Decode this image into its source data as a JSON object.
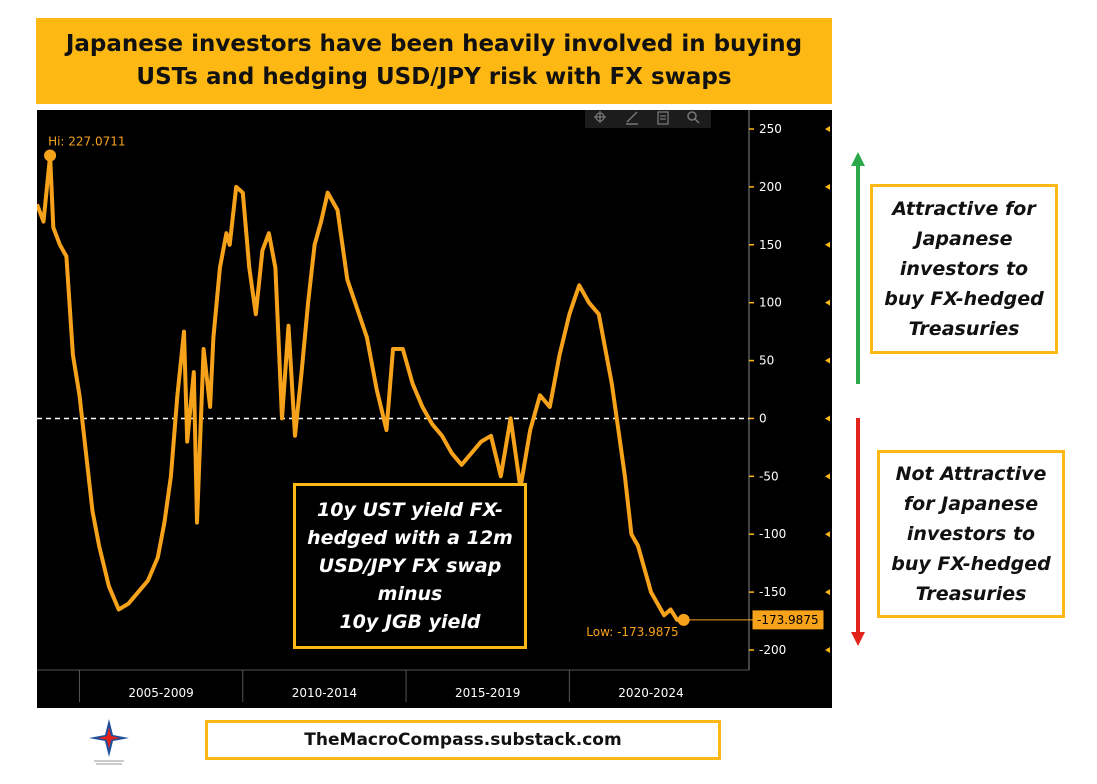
{
  "header": {
    "title": "Japanese investors have been heavily involved in buying USTs and hedging USD/JPY risk with FX swaps"
  },
  "annotations": {
    "attractive": "Attractive for\nJapanese\ninvestors to\nbuy FX-hedged\nTreasuries",
    "not_attractive": "Not Attractive\nfor Japanese\ninvestors to\nbuy FX-hedged\nTreasuries",
    "series_label": "10y UST yield FX-\nhedged with a 12m\nUSD/JPY FX swap\nminus\n10y JGB yield",
    "hi_label": "Hi: 227.0711",
    "low_label": "Low: -173.9875",
    "last_value_tag": "-173.9875"
  },
  "footer": {
    "source": "TheMacroCompass.substack.com"
  },
  "colors": {
    "accent": "#fdb813",
    "series": "#f7a21b",
    "up_arrow": "#2aa84a",
    "down_arrow": "#e2231a",
    "background": "#000000"
  },
  "icons": [
    "crosshair-icon",
    "pencil-icon",
    "notes-icon",
    "magnifier-icon",
    "logo-compass-icon"
  ],
  "chart_data": {
    "type": "line",
    "title": "",
    "xlabel": "",
    "ylabel": "",
    "ylim": [
      -200,
      250
    ],
    "yticks": [
      250,
      200,
      150,
      100,
      50,
      0,
      -50,
      -100,
      -150,
      -200
    ],
    "xlim": [
      2004.1,
      2025.9
    ],
    "x_period_labels": [
      "2005-2009",
      "2010-2014",
      "2015-2019",
      "2020-2024"
    ],
    "zero_line": "dashed white",
    "grid": false,
    "series": [
      {
        "x": [
          2004.1,
          2004.3,
          2004.5,
          2004.6,
          2004.8,
          2005.0,
          2005.2,
          2005.4,
          2005.6,
          2005.8,
          2006.0,
          2006.3,
          2006.6,
          2006.9,
          2007.2,
          2007.5,
          2007.8,
          2008.0,
          2008.2,
          2008.4,
          2008.6,
          2008.7,
          2008.9,
          2009.0,
          2009.2,
          2009.4,
          2009.5,
          2009.7,
          2009.9,
          2010.0,
          2010.2,
          2010.4,
          2010.6,
          2010.8,
          2011.0,
          2011.2,
          2011.4,
          2011.6,
          2011.8,
          2012.0,
          2012.2,
          2012.4,
          2012.6,
          2012.8,
          2013.0,
          2013.3,
          2013.6,
          2013.9,
          2014.2,
          2014.5,
          2014.8,
          2015.0,
          2015.3,
          2015.6,
          2015.9,
          2016.2,
          2016.5,
          2016.8,
          2017.1,
          2017.4,
          2017.7,
          2018.0,
          2018.3,
          2018.6,
          2018.9,
          2019.2,
          2019.5,
          2019.8,
          2020.1,
          2020.4,
          2020.7,
          2021.0,
          2021.3,
          2021.5,
          2021.7,
          2021.9,
          2022.1,
          2022.3,
          2022.5,
          2022.7,
          2022.9,
          2023.1,
          2023.3,
          2023.5,
          2023.7,
          2023.9
        ],
        "y": [
          185,
          170,
          227,
          165,
          150,
          140,
          55,
          20,
          -30,
          -80,
          -110,
          -145,
          -165,
          -160,
          -150,
          -140,
          -120,
          -90,
          -50,
          20,
          75,
          -20,
          40,
          -90,
          60,
          10,
          70,
          130,
          160,
          150,
          200,
          195,
          130,
          90,
          145,
          160,
          130,
          0,
          80,
          -15,
          40,
          100,
          150,
          170,
          195,
          180,
          120,
          95,
          70,
          25,
          -10,
          60,
          60,
          30,
          10,
          -5,
          -15,
          -30,
          -40,
          -30,
          -20,
          -15,
          -50,
          0,
          -60,
          -10,
          20,
          10,
          55,
          90,
          115,
          100,
          90,
          60,
          30,
          -10,
          -50,
          -100,
          -110,
          -130,
          -150,
          -160,
          -170,
          -165,
          -174,
          -173.9875
        ]
      }
    ],
    "hi": {
      "x": 2004.5,
      "y": 227.0711
    },
    "low": {
      "x": 2023.9,
      "y": -173.9875
    }
  }
}
